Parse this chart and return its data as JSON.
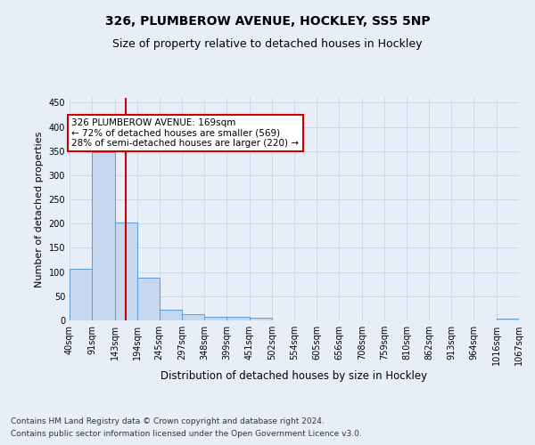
{
  "title1": "326, PLUMBEROW AVENUE, HOCKLEY, SS5 5NP",
  "title2": "Size of property relative to detached houses in Hockley",
  "xlabel": "Distribution of detached houses by size in Hockley",
  "ylabel": "Number of detached properties",
  "footnote1": "Contains HM Land Registry data © Crown copyright and database right 2024.",
  "footnote2": "Contains public sector information licensed under the Open Government Licence v3.0.",
  "bar_edges": [
    40,
    91,
    143,
    194,
    245,
    297,
    348,
    399,
    451,
    502,
    554,
    605,
    656,
    708,
    759,
    810,
    862,
    913,
    964,
    1016,
    1067
  ],
  "bar_heights": [
    107,
    348,
    202,
    88,
    22,
    13,
    8,
    8,
    5,
    0,
    0,
    0,
    0,
    0,
    0,
    0,
    0,
    0,
    0,
    4
  ],
  "bar_color": "#c5d8f0",
  "bar_edge_color": "#5b9bd5",
  "grid_color": "#d0d8e8",
  "property_size": 169,
  "red_line_color": "#cc0000",
  "annotation_line1": "326 PLUMBEROW AVENUE: 169sqm",
  "annotation_line2": "← 72% of detached houses are smaller (569)",
  "annotation_line3": "28% of semi-detached houses are larger (220) →",
  "annotation_box_color": "#ffffff",
  "annotation_box_edge": "#cc0000",
  "ylim": [
    0,
    460
  ],
  "yticks": [
    0,
    50,
    100,
    150,
    200,
    250,
    300,
    350,
    400,
    450
  ],
  "background_color": "#e8eef7",
  "title1_fontsize": 10,
  "title2_fontsize": 9,
  "ylabel_fontsize": 8,
  "xlabel_fontsize": 8.5,
  "tick_fontsize": 7,
  "footnote_fontsize": 6.5
}
